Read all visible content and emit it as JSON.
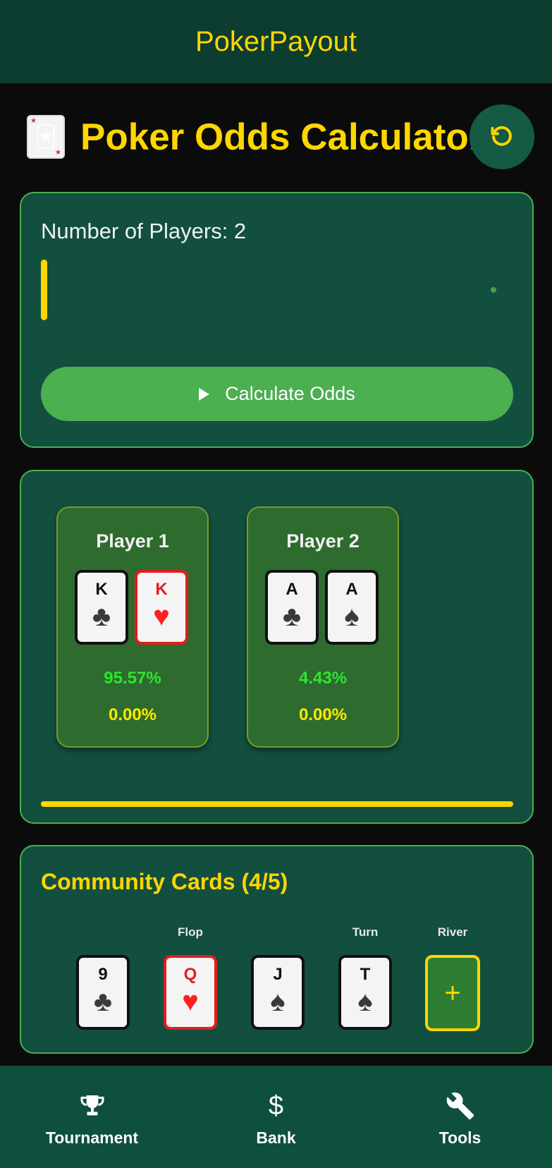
{
  "appbar": {
    "title": "PokerPayout"
  },
  "header": {
    "title": "Poker Odds Calculator",
    "joker_icon": "joker-card-icon",
    "refresh_icon": "refresh-icon"
  },
  "settings": {
    "players_label": "Number of Players: 2",
    "player_count": 2,
    "calculate_label": "Calculate Odds"
  },
  "players": [
    {
      "name": "Player 1",
      "cards": [
        {
          "rank": "K",
          "suit": "♣",
          "color": "black"
        },
        {
          "rank": "K",
          "suit": "♥",
          "color": "red"
        }
      ],
      "win": "95.57%",
      "tie": "0.00%"
    },
    {
      "name": "Player 2",
      "cards": [
        {
          "rank": "A",
          "suit": "♣",
          "color": "black"
        },
        {
          "rank": "A",
          "suit": "♠",
          "color": "black"
        }
      ],
      "win": "4.43%",
      "tie": "0.00%"
    }
  ],
  "calculation_progress": 1.0,
  "community": {
    "title": "Community Cards (4/5)",
    "slots": [
      {
        "label": "",
        "rank": "9",
        "suit": "♣",
        "color": "black"
      },
      {
        "label": "Flop",
        "rank": "Q",
        "suit": "♥",
        "color": "red"
      },
      {
        "label": "",
        "rank": "J",
        "suit": "♠",
        "color": "black"
      },
      {
        "label": "Turn",
        "rank": "T",
        "suit": "♠",
        "color": "black"
      },
      {
        "label": "River",
        "empty": true,
        "add_symbol": "+"
      }
    ]
  },
  "nav": [
    {
      "label": "Tournament",
      "icon": "trophy-icon"
    },
    {
      "label": "Bank",
      "icon": "dollar-icon",
      "glyph": "$"
    },
    {
      "label": "Tools",
      "icon": "wrench-icon"
    }
  ],
  "colors": {
    "accent": "#ffd600",
    "panel": "#124f3f",
    "border": "#4caf50",
    "win": "#2ee62e",
    "tie": "#ffea00"
  }
}
